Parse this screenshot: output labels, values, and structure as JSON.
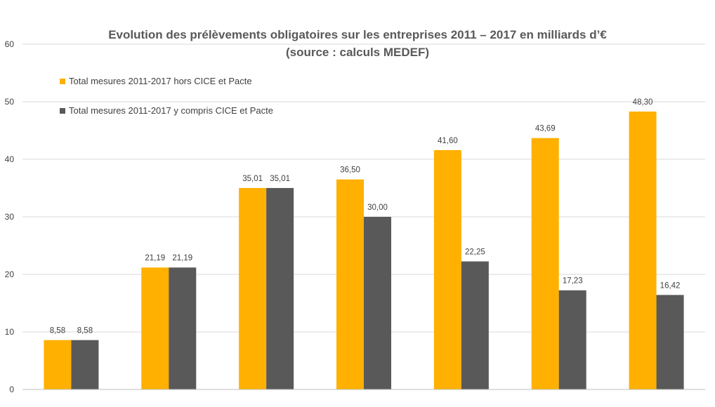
{
  "chart_data": {
    "type": "bar",
    "title": "Evolution des prélèvements obligatoires sur les entreprises 2011 – 2017 en milliards d’€",
    "subtitle": "(source : calculs MEDEF)",
    "categories": [
      "",
      "",
      "",
      "",
      "",
      "",
      ""
    ],
    "series": [
      {
        "name": "Total mesures 2011-2017 hors CICE et Pacte",
        "color": "#FFB000",
        "values": [
          8.58,
          21.19,
          35.01,
          36.5,
          41.6,
          43.69,
          48.3
        ],
        "labels": [
          "8,58",
          "21,19",
          "35,01",
          "36,50",
          "41,60",
          "43,69",
          "48,30"
        ]
      },
      {
        "name": "Total mesures 2011-2017 y compris CICE et Pacte",
        "color": "#595959",
        "values": [
          8.58,
          21.19,
          35.01,
          30.0,
          22.25,
          17.23,
          16.42
        ],
        "labels": [
          "8,58",
          "21,19",
          "35,01",
          "30,00",
          "22,25",
          "17,23",
          "16,42"
        ]
      }
    ],
    "xlabel": "",
    "ylabel": "",
    "ylim": [
      0,
      60
    ],
    "yticks": [
      "0",
      "10",
      "20",
      "30",
      "40",
      "50",
      "60"
    ],
    "grid": true,
    "legend_position": "top-left"
  }
}
